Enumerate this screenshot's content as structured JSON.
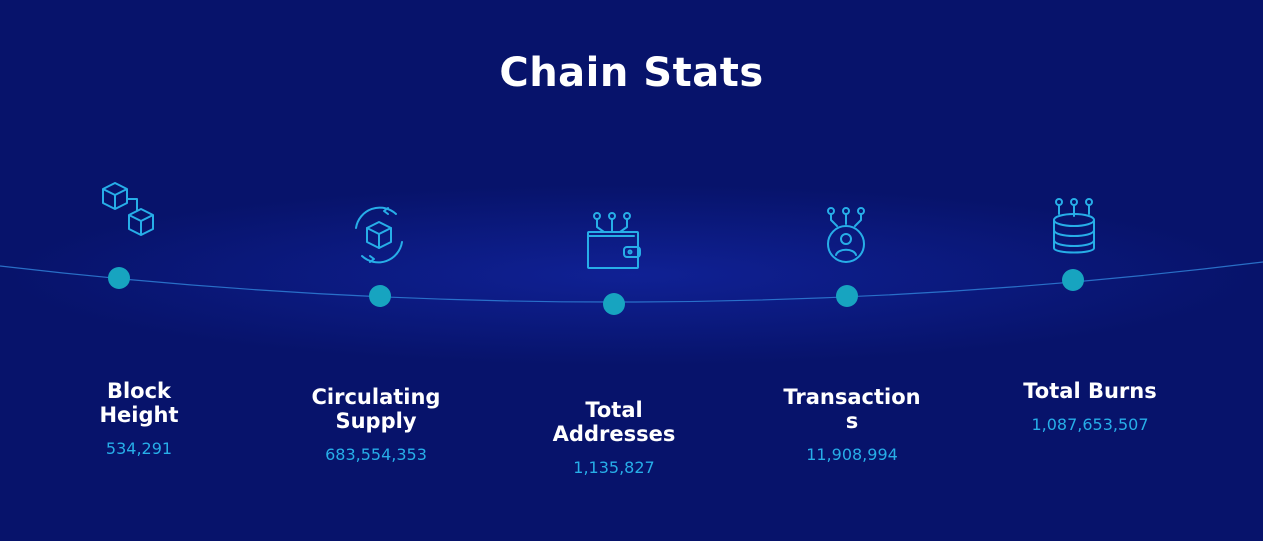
{
  "title": "Chain Stats",
  "colors": {
    "background": "#07136b",
    "accent": "#27aee8",
    "dot": "#17a4c0",
    "title": "#ffffff"
  },
  "stats": [
    {
      "label": "Block Height",
      "value": "534,291",
      "icon": "blocks-icon"
    },
    {
      "label": "Circulating Supply",
      "value": "683,554,353",
      "icon": "rotating-cube-icon"
    },
    {
      "label": "Total Addresses",
      "value": "1,135,827",
      "icon": "wallet-icon"
    },
    {
      "label": "Transactions",
      "value": "11,908,994",
      "icon": "user-network-icon"
    },
    {
      "label": "Total Burns",
      "value": "1,087,653,507",
      "icon": "database-icon"
    }
  ]
}
